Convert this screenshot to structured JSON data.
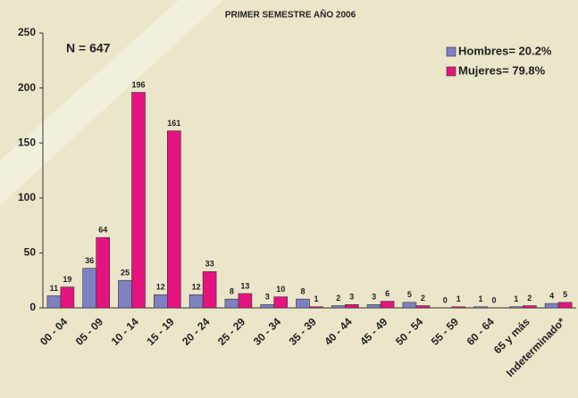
{
  "chart_data": {
    "type": "bar",
    "title": "PRIMER SEMESTRE AÑO 2006",
    "annotation": "N = 647",
    "categories": [
      "00 - 04",
      "05 - 09",
      "10 - 14",
      "15 - 19",
      "20 - 24",
      "25 - 29",
      "30 - 34",
      "35 - 39",
      "40 - 44",
      "45 - 49",
      "50 - 54",
      "55 - 59",
      "60 - 64",
      "65 y más",
      "Indeterminado*"
    ],
    "series": [
      {
        "name": "Hombres= 20.2%",
        "color": "#7f80c2",
        "values": [
          11,
          36,
          25,
          12,
          12,
          8,
          3,
          8,
          2,
          3,
          5,
          0,
          1,
          1,
          4
        ]
      },
      {
        "name": "Mujeres= 79.8%",
        "color": "#e5137f",
        "values": [
          19,
          64,
          196,
          161,
          33,
          13,
          10,
          1,
          3,
          6,
          2,
          1,
          0,
          2,
          5
        ]
      }
    ],
    "ylim": [
      0,
      250
    ],
    "yticks": [
      0,
      50,
      100,
      150,
      200,
      250
    ],
    "legend": "upper right"
  }
}
